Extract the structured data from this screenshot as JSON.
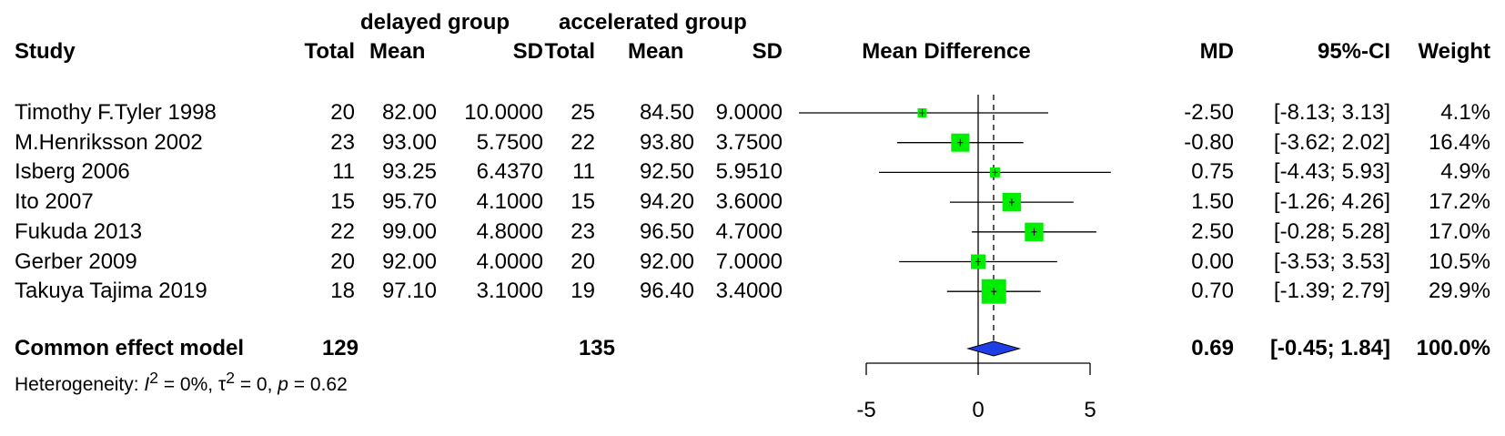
{
  "header": {
    "group1": "delayed group",
    "group2": "accelerated group",
    "study": "Study",
    "total": "Total",
    "mean": "Mean",
    "sd": "SD",
    "plot_title": "Mean Difference",
    "md": "MD",
    "ci": "95%-CI",
    "weight": "Weight"
  },
  "studies": [
    {
      "study": "Timothy F.Tyler 1998",
      "n1": "20",
      "m1": "82.00",
      "sd1": "10.0000",
      "n2": "25",
      "m2": "84.50",
      "sd2": "9.0000",
      "md": "-2.50",
      "ci": "[-8.13; 3.13]",
      "weight": "4.1%"
    },
    {
      "study": "M.Henriksson  2002",
      "n1": "23",
      "m1": "93.00",
      "sd1": "5.7500",
      "n2": "22",
      "m2": "93.80",
      "sd2": "3.7500",
      "md": "-0.80",
      "ci": "[-3.62; 2.02]",
      "weight": "16.4%"
    },
    {
      "study": "Isberg 2006",
      "n1": "11",
      "m1": "93.25",
      "sd1": "6.4370",
      "n2": "11",
      "m2": "92.50",
      "sd2": "5.9510",
      "md": "0.75",
      "ci": "[-4.43; 5.93]",
      "weight": "4.9%"
    },
    {
      "study": "Ito 2007",
      "n1": "15",
      "m1": "95.70",
      "sd1": "4.1000",
      "n2": "15",
      "m2": "94.20",
      "sd2": "3.6000",
      "md": "1.50",
      "ci": "[-1.26; 4.26]",
      "weight": "17.2%"
    },
    {
      "study": "Fukuda 2013",
      "n1": "22",
      "m1": "99.00",
      "sd1": "4.8000",
      "n2": "23",
      "m2": "96.50",
      "sd2": "4.7000",
      "md": "2.50",
      "ci": "[-0.28; 5.28]",
      "weight": "17.0%"
    },
    {
      "study": "Gerber 2009",
      "n1": "20",
      "m1": "92.00",
      "sd1": "4.0000",
      "n2": "20",
      "m2": "92.00",
      "sd2": "7.0000",
      "md": "0.00",
      "ci": "[-3.53; 3.53]",
      "weight": "10.5%"
    },
    {
      "study": "Takuya Tajima 2019",
      "n1": "18",
      "m1": "97.10",
      "sd1": "3.1000",
      "n2": "19",
      "m2": "96.40",
      "sd2": "3.4000",
      "md": "0.70",
      "ci": "[-1.39; 2.79]",
      "weight": "29.9%"
    }
  ],
  "summary": {
    "label": "Common effect model",
    "n1": "129",
    "n2": "135",
    "md": "0.69",
    "ci": "[-0.45; 1.84]",
    "weight": "100.0%",
    "het_prefix": "Heterogeneity: ",
    "het_i": "I",
    "het_i_sup": "2",
    "het_i_val": " = 0%, ",
    "het_tau": "τ",
    "het_tau_sup": "2",
    "het_tau_val": " = 0, ",
    "het_p": "p",
    "het_p_val": " = 0.62"
  },
  "colors": {
    "square": "#00ee00",
    "diamond": "#1e3ee8"
  },
  "chart_data": {
    "type": "forest",
    "xlim": [
      -5,
      5
    ],
    "ticks": [
      "-5",
      "0",
      "5"
    ],
    "null_value": 0,
    "common_effect": {
      "md": 0.69,
      "lower": -0.45,
      "upper": 1.84
    },
    "points": [
      {
        "md": -2.5,
        "lower": -8.13,
        "upper": 3.13,
        "weight": 4.1
      },
      {
        "md": -0.8,
        "lower": -3.62,
        "upper": 2.02,
        "weight": 16.4
      },
      {
        "md": 0.75,
        "lower": -4.43,
        "upper": 5.93,
        "weight": 4.9
      },
      {
        "md": 1.5,
        "lower": -1.26,
        "upper": 4.26,
        "weight": 17.2
      },
      {
        "md": 2.5,
        "lower": -0.28,
        "upper": 5.28,
        "weight": 17.0
      },
      {
        "md": 0.0,
        "lower": -3.53,
        "upper": 3.53,
        "weight": 10.5
      },
      {
        "md": 0.7,
        "lower": -1.39,
        "upper": 2.79,
        "weight": 29.9
      }
    ]
  }
}
